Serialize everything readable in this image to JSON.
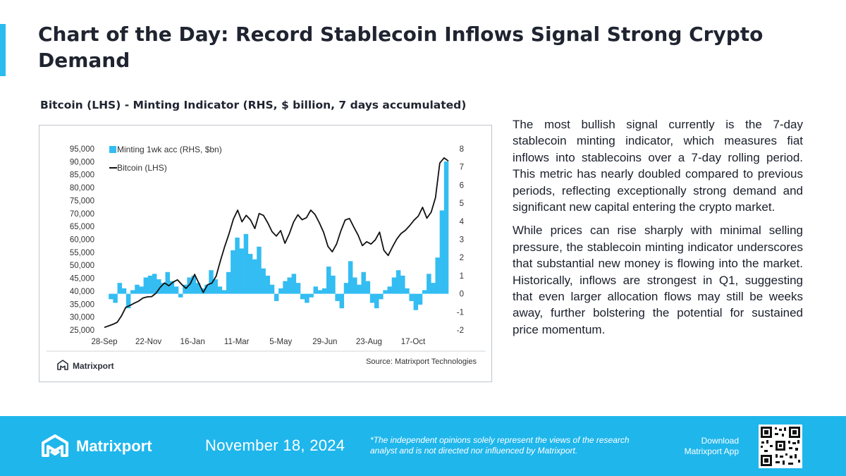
{
  "header": {
    "title": "Chart of the Day: Record Stablecoin Inflows Signal Strong Crypto Demand"
  },
  "chart_heading": "Bitcoin (LHS) - Minting Indicator (RHS, $ billion, 7 days accumulated)",
  "chart_data": {
    "type": "bar+line",
    "series": [
      {
        "name": "Minting 1wk acc (RHS, $bn)",
        "axis": "right",
        "color": "#33bdf2",
        "values": [
          0,
          -0.3,
          -0.5,
          0.6,
          0.3,
          -0.8,
          0.2,
          0.5,
          0.4,
          0.9,
          1.0,
          1.1,
          0.8,
          0.6,
          1.2,
          0.7,
          0.4,
          -0.2,
          0.5,
          0.9,
          1.0,
          0.6,
          0.3,
          0.5,
          1.3,
          0.8,
          0.4,
          0.2,
          1.2,
          2.4,
          3.1,
          2.5,
          3.3,
          2.2,
          1.9,
          2.6,
          1.4,
          1.0,
          0.5,
          -0.4,
          0.3,
          0.7,
          0.9,
          1.1,
          0.6,
          -0.3,
          -0.5,
          -0.2,
          0.4,
          0.2,
          0.3,
          1.5,
          1.0,
          -0.4,
          -0.8,
          0.6,
          1.8,
          0.9,
          0.5,
          1.2,
          0.7,
          -0.5,
          -0.8,
          -0.3,
          0.2,
          0.4,
          0.9,
          1.3,
          1.0,
          0.3,
          -0.4,
          -0.9,
          -0.6,
          0.2,
          1.1,
          0.6,
          2.0,
          4.6,
          7.3
        ]
      },
      {
        "name": "Bitcoin (LHS)",
        "axis": "left",
        "color": "#111111",
        "values": [
          26000,
          26600,
          27200,
          28000,
          30500,
          33800,
          34500,
          35400,
          36200,
          37400,
          37800,
          37900,
          39200,
          41500,
          43200,
          42100,
          43500,
          44400,
          42600,
          41100,
          42900,
          46500,
          43000,
          39500,
          42500,
          43100,
          45800,
          51800,
          57300,
          62200,
          67800,
          71300,
          66800,
          69300,
          67500,
          64200,
          70000,
          69300,
          66400,
          63000,
          61300,
          63400,
          58500,
          62100,
          66700,
          69500,
          67600,
          68400,
          71300,
          69600,
          66400,
          62700,
          57300,
          55200,
          58200,
          63300,
          67500,
          68100,
          64800,
          61700,
          57600,
          59100,
          58200,
          59800,
          62800,
          55800,
          53800,
          57100,
          60100,
          62300,
          63500,
          65300,
          67400,
          69000,
          72400,
          68200,
          70500,
          76100,
          89500,
          91500,
          90300
        ]
      }
    ],
    "x_tick_labels": [
      "28-Sep",
      "22-Nov",
      "16-Jan",
      "11-Mar",
      "5-May",
      "29-Jun",
      "23-Aug",
      "17-Oct"
    ],
    "y_left_ticks": [
      "95,000",
      "90,000",
      "85,000",
      "80,000",
      "75,000",
      "70,000",
      "65,000",
      "60,000",
      "55,000",
      "50,000",
      "45,000",
      "40,000",
      "35,000",
      "30,000",
      "25,000"
    ],
    "y_right_ticks": [
      "8",
      "7",
      "6",
      "5",
      "4",
      "3",
      "2",
      "1",
      "0",
      "-1",
      "-2"
    ],
    "ylim_left": [
      25000,
      95000
    ],
    "ylim_right": [
      -2,
      8
    ],
    "legend_position": "top-left",
    "grid": false,
    "chart_logo_text": "Matrixport",
    "source": "Source: Matrixport Technologies"
  },
  "paragraphs": [
    "The most bullish signal currently is the 7-day stablecoin minting indicator, which measures fiat inflows into stablecoins over a 7-day rolling period. This metric has nearly doubled compared to previous periods, reflecting exceptionally strong demand and significant new capital entering the crypto market.",
    "While prices can rise sharply with minimal selling pressure, the stablecoin minting indicator underscores that substantial new money is flowing into the market. Historically, inflows are strongest in Q1, suggesting that even larger allocation flows may still be weeks away, further bolstering the potential for sustained price momentum."
  ],
  "footer": {
    "brand": "Matrixport",
    "date": "November 18, 2024",
    "disclaimer": "*The independent opinions solely represent the views of the research analyst and is not directed nor influenced by Matrixport.",
    "download": "Download Matrixport App",
    "accent_color": "#1fb6ec"
  }
}
